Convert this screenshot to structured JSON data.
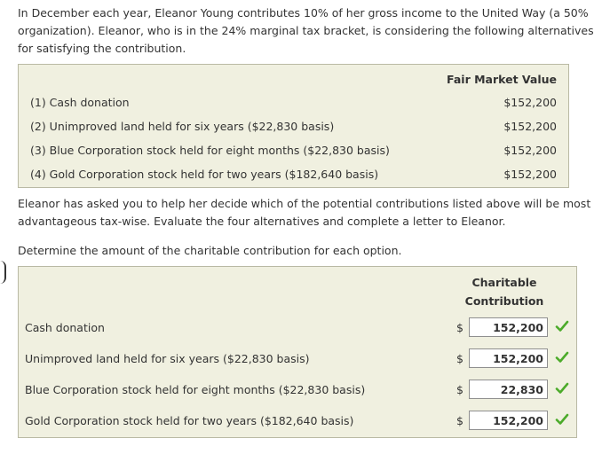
{
  "intro": "In December each year, Eleanor Young contributes 10% of her gross income to the United Way (a 50% organization). Eleanor, who is in the 24% marginal tax bracket, is considering the following alternatives for satisfying the contribution.",
  "fmv_table": {
    "header": "Fair Market Value",
    "rows": [
      {
        "label": "(1) Cash donation",
        "value": "$152,200"
      },
      {
        "label": "(2) Unimproved land held for six years ($22,830 basis)",
        "value": "$152,200"
      },
      {
        "label": "(3) Blue Corporation stock held for eight months ($22,830 basis)",
        "value": "$152,200"
      },
      {
        "label": "(4) Gold Corporation stock held for two years ($182,640 basis)",
        "value": "$152,200"
      }
    ]
  },
  "paragraph2": "Eleanor has asked you to help her decide which of the potential contributions listed above will be most advantageous tax-wise. Evaluate the four alternatives and complete a letter to Eleanor.",
  "paragraph3": "Determine the amount of the charitable contribution for each option.",
  "contribution_table": {
    "header_line1": "Charitable",
    "header_line2": "Contribution",
    "currency": "$",
    "check_color": "#4cab2a",
    "rows": [
      {
        "label": "Cash donation",
        "value": "152,200",
        "status": "correct"
      },
      {
        "label": "Unimproved land held for six years ($22,830 basis)",
        "value": "152,200",
        "status": "correct"
      },
      {
        "label": "Blue Corporation stock held for eight months ($22,830 basis)",
        "value": "22,830",
        "status": "correct"
      },
      {
        "label": "Gold Corporation stock held for two years ($182,640 basis)",
        "value": "152,200",
        "status": "correct"
      }
    ]
  }
}
